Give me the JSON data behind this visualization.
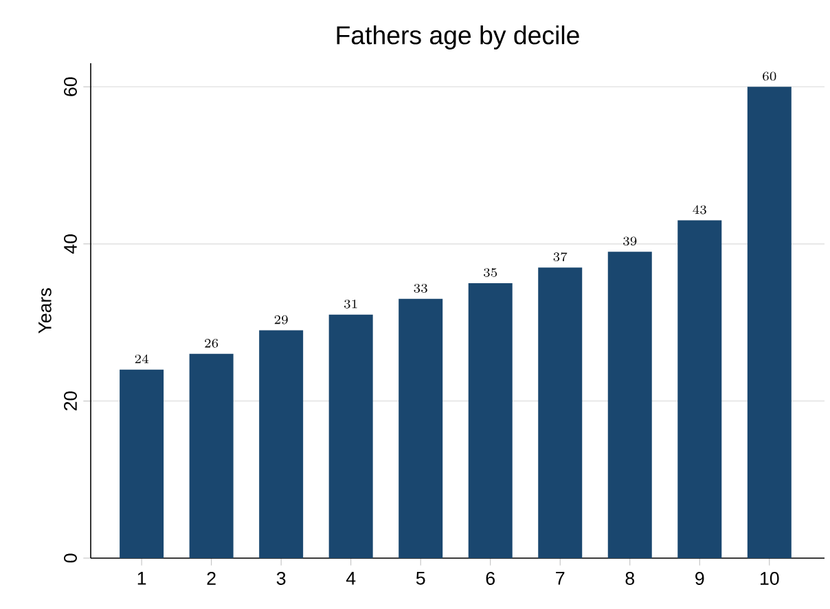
{
  "chart_data": {
    "type": "bar",
    "title": "Fathers age by decile",
    "ylabel": "Years",
    "categories": [
      "1",
      "2",
      "3",
      "4",
      "5",
      "6",
      "7",
      "8",
      "9",
      "10"
    ],
    "values": [
      24,
      26,
      29,
      31,
      33,
      35,
      37,
      39,
      43,
      60
    ],
    "color": "#1a476f",
    "ylim": [
      0,
      63
    ],
    "yticks": [
      0,
      20,
      40,
      60
    ],
    "grid": "y",
    "data_labels": true
  }
}
